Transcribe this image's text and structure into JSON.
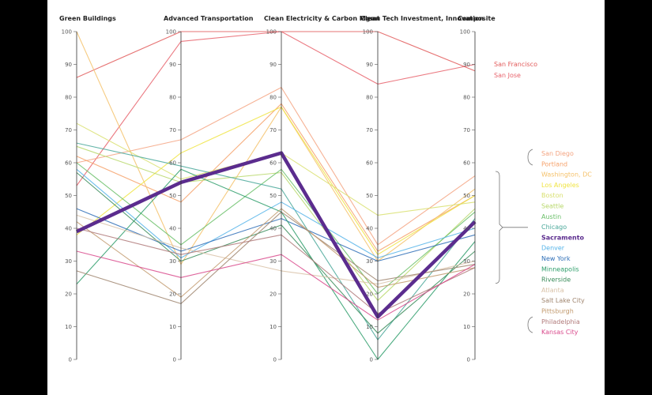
{
  "chart_data": {
    "type": "parallel-coordinates",
    "axes": [
      "Green Buildings",
      "Advanced Transportation",
      "Clean Electricity & Carbon Mgmt",
      "Clean Tech Investment, Innovation",
      "Composite"
    ],
    "ylim": [
      0,
      100
    ],
    "ticks": [
      "0",
      "10",
      "20",
      "30",
      "40",
      "50",
      "60",
      "70",
      "80",
      "90",
      "100"
    ],
    "highlight": "Sacramento",
    "bracket_range": [
      "San Diego",
      "Riverside"
    ],
    "series": [
      {
        "name": "San Francisco",
        "color": "#e25b5b",
        "values": [
          86,
          100,
          100,
          100,
          88
        ]
      },
      {
        "name": "San Jose",
        "color": "#e8636c",
        "values": [
          53,
          97,
          100,
          84,
          90
        ]
      },
      {
        "name": "San Diego",
        "color": "#f4a582",
        "values": [
          60,
          67,
          83,
          35,
          56
        ]
      },
      {
        "name": "Portland",
        "color": "#f6a26b",
        "values": [
          62,
          48,
          78,
          33,
          50
        ]
      },
      {
        "name": "Washington, DC",
        "color": "#f5c26b",
        "values": [
          100,
          29,
          77,
          30,
          52
        ]
      },
      {
        "name": "Los Angeles",
        "color": "#f0e442",
        "values": [
          38,
          63,
          77,
          32,
          50
        ]
      },
      {
        "name": "Boston",
        "color": "#d9e070",
        "values": [
          72,
          55,
          63,
          44,
          48
        ]
      },
      {
        "name": "Seattle",
        "color": "#b8d86b",
        "values": [
          65,
          54,
          57,
          18,
          46
        ]
      },
      {
        "name": "Austin",
        "color": "#6abf69",
        "values": [
          60,
          35,
          58,
          20,
          45
        ]
      },
      {
        "name": "Chicago",
        "color": "#4aa89a",
        "values": [
          66,
          59,
          52,
          6,
          43
        ]
      },
      {
        "name": "Sacramento",
        "color": "#5b2c8e",
        "values": [
          39,
          54,
          63,
          13,
          42
        ]
      },
      {
        "name": "Denver",
        "color": "#56b4e9",
        "values": [
          58,
          31,
          48,
          31,
          40
        ]
      },
      {
        "name": "New York",
        "color": "#2f6fb7",
        "values": [
          46,
          33,
          43,
          30,
          38
        ]
      },
      {
        "name": "Minneapolis",
        "color": "#2e9e6b",
        "values": [
          23,
          58,
          45,
          0,
          36
        ]
      },
      {
        "name": "Riverside",
        "color": "#3a8c5a",
        "values": [
          57,
          30,
          41,
          8,
          33
        ]
      },
      {
        "name": "Atlanta",
        "color": "#d9c2a8",
        "values": [
          44,
          34,
          27,
          23,
          30
        ]
      },
      {
        "name": "Salt Lake City",
        "color": "#a08670",
        "values": [
          27,
          17,
          45,
          24,
          29
        ]
      },
      {
        "name": "Pittsburgh",
        "color": "#c29a6e",
        "values": [
          42,
          19,
          46,
          22,
          28
        ]
      },
      {
        "name": "Philadelphia",
        "color": "#b07a7a",
        "values": [
          40,
          32,
          38,
          14,
          28
        ]
      },
      {
        "name": "Kansas City",
        "color": "#d94a8c",
        "values": [
          33,
          25,
          32,
          12,
          29
        ]
      }
    ]
  }
}
